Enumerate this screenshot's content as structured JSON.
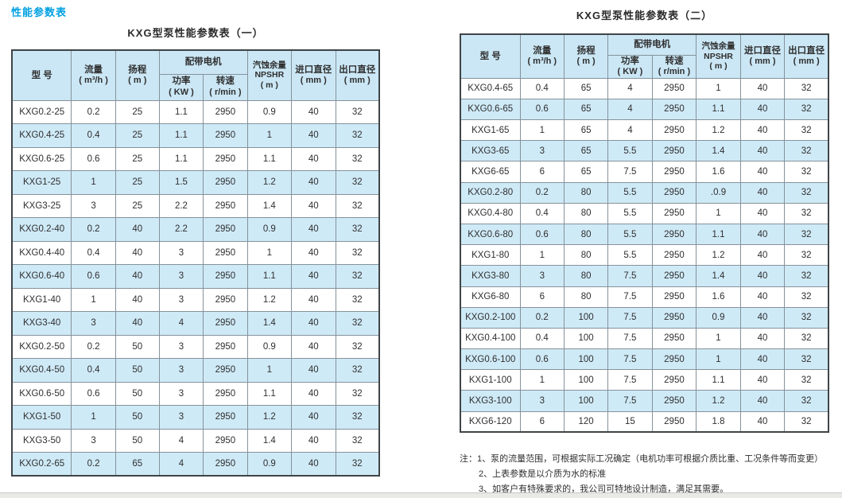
{
  "page": {
    "section_title": "性能参数表"
  },
  "headers": {
    "model": "型  号",
    "flow": "流量",
    "flow_unit": "( m³/h )",
    "head": "扬程",
    "head_unit": "( m )",
    "motor_group": "配带电机",
    "power": "功率",
    "power_unit": "( KW )",
    "speed": "转速",
    "speed_unit": "( r/min )",
    "npshr_line1": "汽蚀余量",
    "npshr_line2": "NPSHR",
    "npshr_unit": "( m )",
    "inlet": "进口直径",
    "inlet_unit": "( mm )",
    "outlet": "出口直径",
    "outlet_unit": "( mm )"
  },
  "table_one": {
    "title": "KXG型泵性能参数表（一）",
    "rows": [
      [
        "KXG0.2-25",
        "0.2",
        "25",
        "1.1",
        "2950",
        "0.9",
        "40",
        "32"
      ],
      [
        "KXG0.4-25",
        "0.4",
        "25",
        "1.1",
        "2950",
        "1",
        "40",
        "32"
      ],
      [
        "KXG0.6-25",
        "0.6",
        "25",
        "1.1",
        "2950",
        "1.1",
        "40",
        "32"
      ],
      [
        "KXG1-25",
        "1",
        "25",
        "1.5",
        "2950",
        "1.2",
        "40",
        "32"
      ],
      [
        "KXG3-25",
        "3",
        "25",
        "2.2",
        "2950",
        "1.4",
        "40",
        "32"
      ],
      [
        "KXG0.2-40",
        "0.2",
        "40",
        "2.2",
        "2950",
        "0.9",
        "40",
        "32"
      ],
      [
        "KXG0.4-40",
        "0.4",
        "40",
        "3",
        "2950",
        "1",
        "40",
        "32"
      ],
      [
        "KXG0.6-40",
        "0.6",
        "40",
        "3",
        "2950",
        "1.1",
        "40",
        "32"
      ],
      [
        "KXG1-40",
        "1",
        "40",
        "3",
        "2950",
        "1.2",
        "40",
        "32"
      ],
      [
        "KXG3-40",
        "3",
        "40",
        "4",
        "2950",
        "1.4",
        "40",
        "32"
      ],
      [
        "KXG0.2-50",
        "0.2",
        "50",
        "3",
        "2950",
        "0.9",
        "40",
        "32"
      ],
      [
        "KXG0.4-50",
        "0.4",
        "50",
        "3",
        "2950",
        "1",
        "40",
        "32"
      ],
      [
        "KXG0.6-50",
        "0.6",
        "50",
        "3",
        "2950",
        "1.1",
        "40",
        "32"
      ],
      [
        "KXG1-50",
        "1",
        "50",
        "3",
        "2950",
        "1.2",
        "40",
        "32"
      ],
      [
        "KXG3-50",
        "3",
        "50",
        "4",
        "2950",
        "1.4",
        "40",
        "32"
      ],
      [
        "KXG0.2-65",
        "0.2",
        "65",
        "4",
        "2950",
        "0.9",
        "40",
        "32"
      ]
    ]
  },
  "table_two": {
    "title": "KXG型泵性能参数表（二）",
    "rows": [
      [
        "KXG0.4-65",
        "0.4",
        "65",
        "4",
        "2950",
        "1",
        "40",
        "32"
      ],
      [
        "KXG0.6-65",
        "0.6",
        "65",
        "4",
        "2950",
        "1.1",
        "40",
        "32"
      ],
      [
        "KXG1-65",
        "1",
        "65",
        "4",
        "2950",
        "1.2",
        "40",
        "32"
      ],
      [
        "KXG3-65",
        "3",
        "65",
        "5.5",
        "2950",
        "1.4",
        "40",
        "32"
      ],
      [
        "KXG6-65",
        "6",
        "65",
        "7.5",
        "2950",
        "1.6",
        "40",
        "32"
      ],
      [
        "KXG0.2-80",
        "0.2",
        "80",
        "5.5",
        "2950",
        ".0.9",
        "40",
        "32"
      ],
      [
        "KXG0.4-80",
        "0.4",
        "80",
        "5.5",
        "2950",
        "1",
        "40",
        "32"
      ],
      [
        "KXG0.6-80",
        "0.6",
        "80",
        "5.5",
        "2950",
        "1.1",
        "40",
        "32"
      ],
      [
        "KXG1-80",
        "1",
        "80",
        "5.5",
        "2950",
        "1.2",
        "40",
        "32"
      ],
      [
        "KXG3-80",
        "3",
        "80",
        "7.5",
        "2950",
        "1.4",
        "40",
        "32"
      ],
      [
        "KXG6-80",
        "6",
        "80",
        "7.5",
        "2950",
        "1.6",
        "40",
        "32"
      ],
      [
        "KXG0.2-100",
        "0.2",
        "100",
        "7.5",
        "2950",
        "0.9",
        "40",
        "32"
      ],
      [
        "KXG0.4-100",
        "0.4",
        "100",
        "7.5",
        "2950",
        "1",
        "40",
        "32"
      ],
      [
        "KXG0.6-100",
        "0.6",
        "100",
        "7.5",
        "2950",
        "1",
        "40",
        "32"
      ],
      [
        "KXG1-100",
        "1",
        "100",
        "7.5",
        "2950",
        "1.1",
        "40",
        "32"
      ],
      [
        "KXG3-100",
        "3",
        "100",
        "7.5",
        "2950",
        "1.2",
        "40",
        "32"
      ],
      [
        "KXG6-120",
        "6",
        "120",
        "15",
        "2950",
        "1.8",
        "40",
        "32"
      ]
    ]
  },
  "notes": {
    "prefix": "注：",
    "items": [
      "1、泵的流量范围，可根据实际工况确定（电机功率可根据介质比重、工况条件等而变更）",
      "2、上表参数是以介质为水的标准",
      "3、如客户有特殊要求的，我公司可特地设计制造，满足其需要。"
    ]
  },
  "colors": {
    "section_title": "#00a0e0",
    "header_bg": "#cbe7f5",
    "alt_row_bg": "#cfeaf7",
    "outer_border": "#3f4447",
    "inner_border": "#85929b"
  }
}
